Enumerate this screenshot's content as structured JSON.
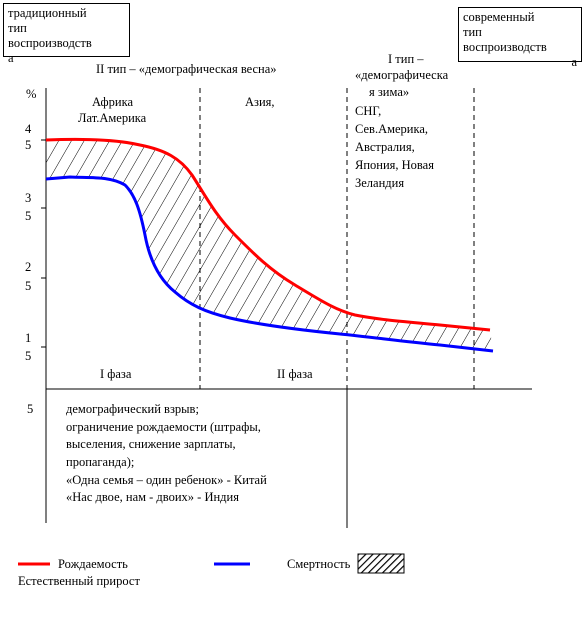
{
  "boxes": {
    "traditional": [
      "традиционный",
      "тип",
      "воспроизводств",
      "а"
    ],
    "modern": [
      "современный",
      "тип",
      "воспроизводств",
      "а"
    ]
  },
  "headers": {
    "type2": "II тип – «демографическая весна»",
    "type1": [
      "I тип –",
      "«демографическа",
      "я зима»"
    ]
  },
  "regions": {
    "africa": [
      "Африка",
      "Лат.Америка"
    ],
    "asia": "Азия,",
    "cis": [
      "СНГ,",
      "Сев.Америка,",
      "Австралия,",
      "Япония, Новая",
      "Зеландия"
    ]
  },
  "y_axis": {
    "unit": "%",
    "tick_labels": [
      [
        "4",
        "5"
      ],
      [
        "3",
        "5"
      ],
      [
        "2",
        "5"
      ],
      [
        "1",
        "5"
      ],
      [
        "5"
      ]
    ]
  },
  "phases": {
    "phase1": "I фаза",
    "phase2": "II фаза"
  },
  "notes": [
    "демографический взрыв;",
    "ограничение рождаемости (штрафы,",
    "выселения, снижение зарплаты,",
    "пропаганда);",
    "«Одна семья – один ребенок» - Китай",
    "«Нас двое, нам - двоих» - Индия"
  ],
  "legend": {
    "birth": "Рождаемость",
    "death": "Смертность",
    "natural": "Естественный прирост"
  },
  "colors": {
    "birth": "#ff0000",
    "death": "#0000ff",
    "axis": "#000000"
  },
  "chart_data": {
    "type": "line",
    "y_unit": "%",
    "series": [
      {
        "name": "Рождаемость",
        "trend": "high, then falling, then low"
      },
      {
        "name": "Смертность",
        "trend": "high, then sharply falling, then low"
      }
    ],
    "fill_between": "Естественный прирост"
  }
}
